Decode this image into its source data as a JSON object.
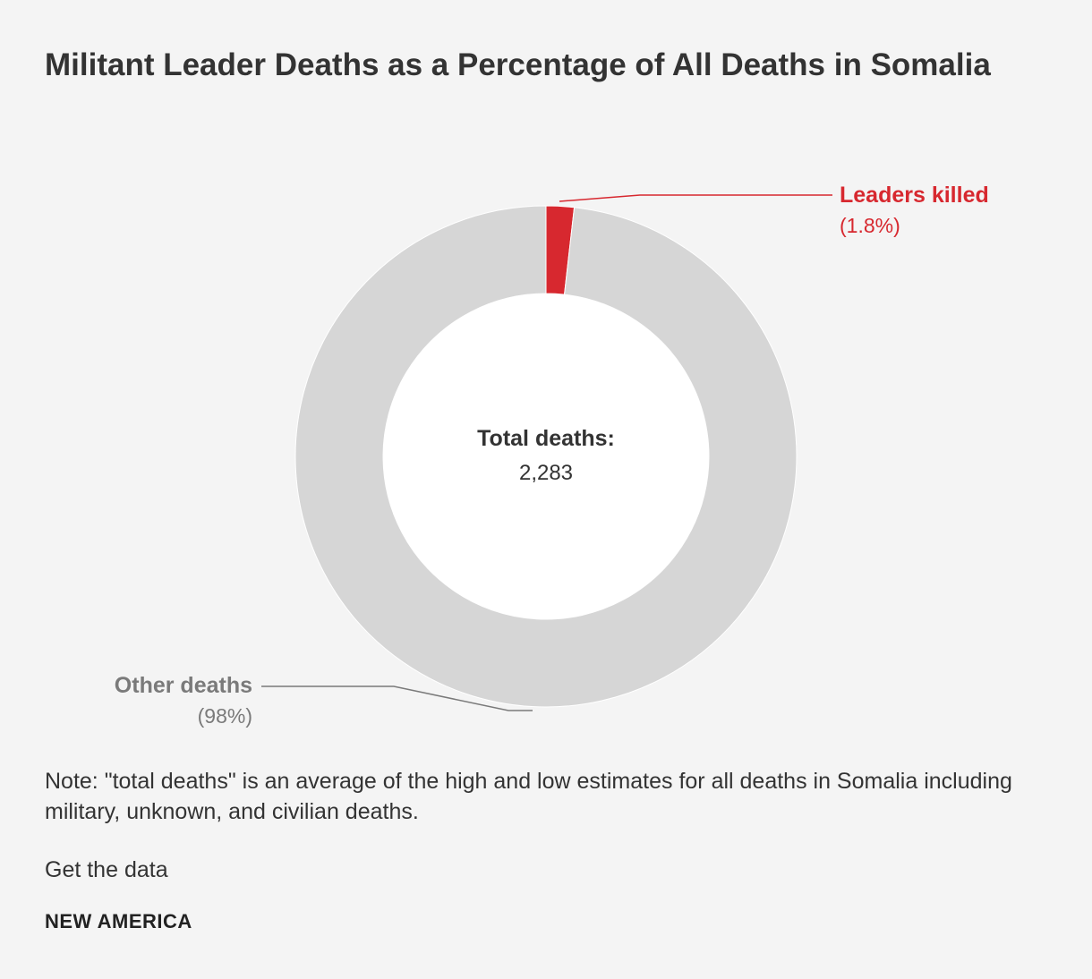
{
  "title": "Militant Leader Deaths as a Percentage of All Deaths in Somalia",
  "chart_data": {
    "type": "pie",
    "variant": "donut",
    "center_label": "Total deaths:",
    "center_value": "2,283",
    "total": 2283,
    "slices": [
      {
        "name": "Leaders killed",
        "label": "(1.8%)",
        "value": 1.8,
        "color": "#d7282f"
      },
      {
        "name": "Other deaths",
        "label": "(98%)",
        "value": 98.2,
        "color": "#d6d6d6"
      }
    ],
    "callout_colors": {
      "leaders": "#d7282f",
      "other": "#7a7a7a"
    }
  },
  "note": "Note: \"total deaths\" is an average of the high and low estimates for all deaths in Somalia including military, unknown, and civilian deaths.",
  "get_data_label": "Get the data",
  "brand": "NEW AMERICA"
}
